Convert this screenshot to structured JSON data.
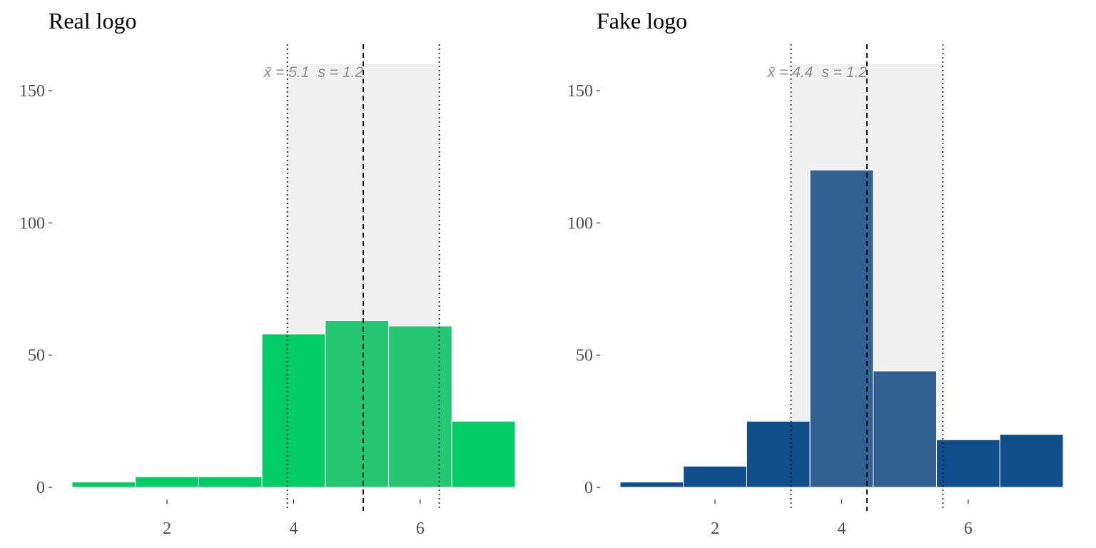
{
  "chart_data": [
    {
      "type": "bar",
      "title": "Real logo",
      "xlabel": "",
      "ylabel": "",
      "bins": [
        1,
        2,
        3,
        4,
        5,
        6,
        7
      ],
      "values": [
        2,
        4,
        4,
        58,
        63,
        61,
        25
      ],
      "highlight_bins": [
        5,
        6
      ],
      "xlim": [
        0.5,
        7.5
      ],
      "ylim": [
        0,
        160
      ],
      "x_ticks": [
        2,
        4,
        6
      ],
      "y_ticks": [
        0,
        50,
        100,
        150
      ],
      "mean": 5.1,
      "sd": 1.2,
      "band": [
        3.9,
        6.3
      ],
      "annotation": {
        "mean_label": "x̄ = 5.1",
        "sd_label": "s = 1.2"
      },
      "colors": {
        "bar": "#00cc66",
        "highlight": "#26c773",
        "band": "#f0f0f0"
      },
      "grid": false
    },
    {
      "type": "bar",
      "title": "Fake logo",
      "xlabel": "",
      "ylabel": "",
      "bins": [
        1,
        2,
        3,
        4,
        5,
        6,
        7
      ],
      "values": [
        2,
        8,
        25,
        120,
        44,
        18,
        20
      ],
      "highlight_bins": [
        4,
        5
      ],
      "xlim": [
        0.5,
        7.5
      ],
      "ylim": [
        0,
        160
      ],
      "x_ticks": [
        2,
        4,
        6
      ],
      "y_ticks": [
        0,
        50,
        100,
        150
      ],
      "mean": 4.4,
      "sd": 1.2,
      "band": [
        3.2,
        5.6
      ],
      "annotation": {
        "mean_label": "x̄ = 4.4",
        "sd_label": "s = 1.2"
      },
      "colors": {
        "bar": "#104e8b",
        "highlight": "#316191",
        "band": "#f0f0f0"
      },
      "grid": false
    }
  ]
}
